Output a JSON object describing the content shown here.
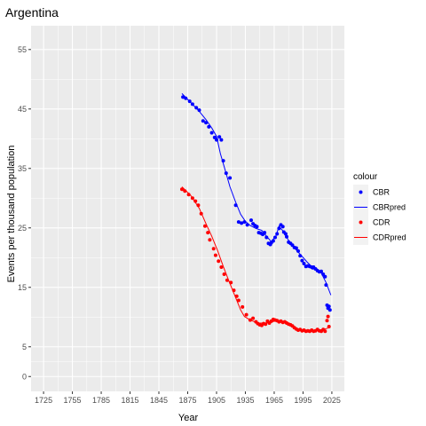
{
  "chart_data": {
    "type": "line",
    "title": "Argentina",
    "xlabel": "Year",
    "ylabel": "Events per thousand population",
    "xlim": [
      1712,
      2038
    ],
    "ylim": [
      -2.5,
      59
    ],
    "x_ticks": [
      1725,
      1755,
      1785,
      1815,
      1845,
      1875,
      1905,
      1935,
      1965,
      1995,
      2025
    ],
    "y_ticks": [
      0,
      5,
      15,
      25,
      35,
      45,
      55
    ],
    "grid": true,
    "legend_position": "right",
    "legend": {
      "title": "colour",
      "entries": [
        {
          "label": "CBR",
          "marker": "point",
          "color": "#0000ff"
        },
        {
          "label": "CBRpred",
          "marker": "line",
          "color": "#0000ff"
        },
        {
          "label": "CDR",
          "marker": "point",
          "color": "#ff0000"
        },
        {
          "label": "CDRpred",
          "marker": "line",
          "color": "#ff0000"
        }
      ]
    },
    "series": [
      {
        "name": "CBR",
        "kind": "points",
        "color": "#0000ff",
        "x": [
          1870,
          1873,
          1877,
          1880,
          1884,
          1887,
          1891,
          1894,
          1897,
          1900,
          1903,
          1905,
          1908,
          1910,
          1912,
          1915,
          1919,
          1925,
          1928,
          1931,
          1934,
          1937,
          1941,
          1943,
          1945,
          1947,
          1949,
          1951,
          1953,
          1955,
          1957,
          1959,
          1961,
          1962,
          1964,
          1966,
          1968,
          1970,
          1972,
          1974,
          1975,
          1977,
          1978,
          1980,
          1982,
          1984,
          1986,
          1988,
          1990,
          1992,
          1994,
          1996,
          1998,
          2000,
          2002,
          2004,
          2005,
          2006,
          2008,
          2010,
          2012,
          2014,
          2016,
          2018,
          2019,
          2020,
          2021,
          2022,
          2023
        ],
        "y": [
          47,
          46.8,
          46.3,
          45.8,
          45.2,
          44.8,
          43,
          42.7,
          42,
          41,
          40.2,
          39.8,
          40.3,
          39.8,
          36.3,
          34.2,
          33.4,
          28.8,
          26,
          25.8,
          26,
          25.5,
          26.3,
          25.7,
          25.4,
          25.2,
          24.2,
          24.1,
          23.9,
          24.2,
          23.4,
          22.4,
          22.2,
          22.5,
          22.8,
          23.4,
          24,
          24.9,
          25.5,
          25.2,
          24.3,
          24,
          23.5,
          22.6,
          22.4,
          22.1,
          21.7,
          21.6,
          21.1,
          20.3,
          19.5,
          19,
          18.5,
          18.6,
          18.5,
          18.4,
          18.3,
          18.4,
          18.1,
          17.8,
          17.6,
          17.7,
          17.2,
          16.8,
          15.4,
          12,
          11.5,
          11.8,
          11.2
        ]
      },
      {
        "name": "CBRpred",
        "kind": "line",
        "color": "#0000ff",
        "x": [
          1869,
          1878,
          1886,
          1894,
          1900,
          1905,
          1909,
          1913,
          1919,
          1925,
          1930,
          1935,
          1940,
          1946,
          1952,
          1958,
          1962,
          1967,
          1970,
          1974,
          1978,
          1983,
          1989,
          1994,
          1999,
          2004,
          2009,
          2014,
          2019,
          2024
        ],
        "y": [
          47.6,
          46.1,
          44.8,
          43.2,
          41.8,
          40.4,
          37.5,
          35.3,
          31.9,
          29.3,
          27.3,
          26.1,
          25.4,
          24.9,
          24.6,
          23.4,
          22.7,
          23.7,
          25.3,
          24.5,
          23.4,
          22.2,
          21.1,
          20.2,
          19.3,
          18.5,
          18.2,
          17.4,
          15.8,
          13.7
        ]
      },
      {
        "name": "CDR",
        "kind": "points",
        "color": "#ff0000",
        "x": [
          1869,
          1872,
          1876,
          1880,
          1883,
          1886,
          1889,
          1893,
          1896,
          1898,
          1902,
          1904,
          1907,
          1910,
          1913,
          1916,
          1920,
          1923,
          1926,
          1928,
          1932,
          1936,
          1940,
          1943,
          1946,
          1948,
          1950,
          1952,
          1954,
          1956,
          1958,
          1960,
          1962,
          1964,
          1966,
          1968,
          1970,
          1972,
          1974,
          1976,
          1978,
          1980,
          1982,
          1984,
          1986,
          1988,
          1990,
          1992,
          1994,
          1996,
          1998,
          2000,
          2002,
          2004,
          2006,
          2008,
          2010,
          2012,
          2014,
          2016,
          2018,
          2020,
          2021,
          2022
        ],
        "y": [
          31.5,
          31.2,
          30.6,
          30,
          29.5,
          28.8,
          27.4,
          25.3,
          24.2,
          23,
          21.5,
          20.4,
          19.4,
          18.4,
          17.2,
          16.2,
          15.8,
          14.5,
          13.5,
          12.8,
          11.7,
          10.4,
          9.5,
          9.8,
          9.2,
          8.9,
          8.7,
          8.6,
          8.9,
          8.8,
          9.3,
          9,
          9.3,
          9.6,
          9.5,
          9.4,
          9.2,
          9.3,
          9.1,
          9.2,
          9,
          8.8,
          8.7,
          8.5,
          8.2,
          8,
          7.8,
          7.9,
          7.7,
          7.8,
          7.6,
          7.7,
          7.6,
          7.8,
          7.6,
          7.7,
          7.9,
          7.7,
          7.6,
          7.9,
          7.6,
          9.4,
          10.1,
          8.4
        ]
      },
      {
        "name": "CDRpred",
        "kind": "line",
        "color": "#ff0000",
        "x": [
          1869,
          1878,
          1887,
          1894,
          1900,
          1906,
          1912,
          1918,
          1924,
          1930,
          1934,
          1940,
          1948,
          1956,
          1962,
          1968,
          1974,
          1980,
          1986,
          1992,
          1998,
          2004,
          2010,
          2016,
          2022
        ],
        "y": [
          31.9,
          30.5,
          28.3,
          25.7,
          23.6,
          21.2,
          18.5,
          16,
          13.6,
          11.2,
          10.1,
          9.5,
          9,
          9,
          9.1,
          9.5,
          9.2,
          8.7,
          8.2,
          7.9,
          7.8,
          7.7,
          7.8,
          7.9,
          8.2
        ]
      }
    ]
  }
}
